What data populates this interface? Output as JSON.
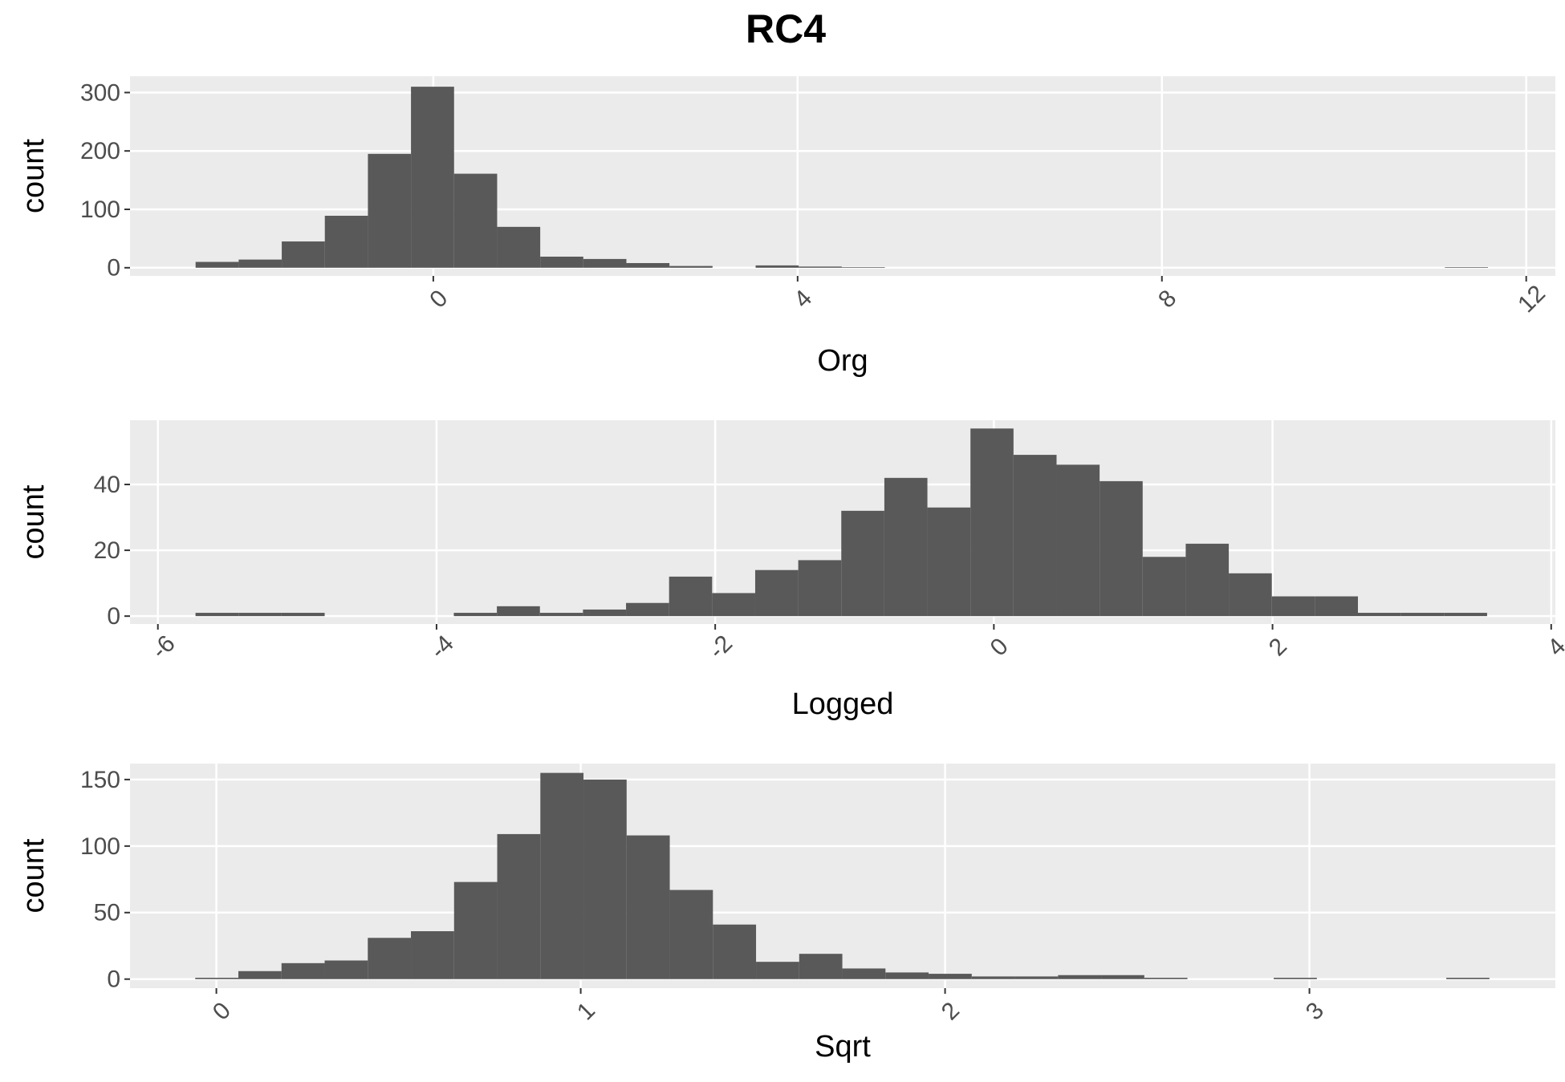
{
  "chart_data": [
    {
      "type": "histogram",
      "title": "RC4",
      "x_label": "Org",
      "y_label": "count",
      "color": "#595959",
      "grid": true,
      "bins": [
        -2.61,
        -2.137,
        -1.664,
        -1.191,
        -0.718,
        -0.245,
        0.228,
        0.701,
        1.174,
        1.647,
        2.12,
        2.593,
        3.066,
        3.539,
        4.012,
        4.485,
        4.958,
        5.431,
        5.904,
        6.377,
        6.85,
        7.323,
        7.796,
        8.269,
        8.742,
        9.215,
        9.688,
        10.161,
        10.634,
        11.107,
        11.58
      ],
      "values": [
        10,
        14,
        45,
        89,
        195,
        310,
        161,
        70,
        19,
        15,
        8,
        3,
        0,
        4,
        2,
        1,
        0,
        0,
        0,
        0,
        0,
        0,
        0,
        0,
        0,
        0,
        0,
        0,
        0,
        1
      ],
      "xlim": [
        -3.33,
        12.32
      ],
      "xticks": [
        0,
        4,
        8,
        12
      ],
      "ylim": [
        -14,
        328
      ],
      "yticks": [
        0,
        100,
        200,
        300
      ]
    },
    {
      "type": "histogram",
      "x_label": "Logged",
      "y_label": "count",
      "color": "#595959",
      "grid": true,
      "bins": [
        -5.73,
        -5.421,
        -5.112,
        -4.803,
        -4.494,
        -4.185,
        -3.876,
        -3.567,
        -3.258,
        -2.949,
        -2.64,
        -2.331,
        -2.022,
        -1.713,
        -1.404,
        -1.095,
        -0.786,
        -0.477,
        -0.168,
        0.141,
        0.45,
        0.759,
        1.068,
        1.377,
        1.686,
        1.995,
        2.304,
        2.613,
        2.922,
        3.231,
        3.54
      ],
      "values": [
        1,
        1,
        1,
        0,
        0,
        0,
        1,
        3,
        1,
        2,
        4,
        12,
        7,
        14,
        17,
        32,
        42,
        33,
        57,
        49,
        46,
        41,
        18,
        22,
        13,
        6,
        6,
        1,
        1,
        1
      ],
      "xlim": [
        -6.2,
        4.03
      ],
      "xticks": [
        -6,
        -4,
        -2,
        0,
        2,
        4
      ],
      "ylim": [
        -2.4,
        59.5
      ],
      "yticks": [
        0,
        20,
        40
      ]
    },
    {
      "type": "histogram",
      "x_label": "Sqrt",
      "y_label": "count",
      "color": "#595959",
      "grid": true,
      "bins": [
        -0.058,
        0.0604,
        0.1788,
        0.2972,
        0.4156,
        0.534,
        0.6524,
        0.7708,
        0.8892,
        1.0076,
        1.126,
        1.2444,
        1.3628,
        1.4812,
        1.5996,
        1.718,
        1.8364,
        1.9548,
        2.0732,
        2.1916,
        2.31,
        2.4284,
        2.5468,
        2.6652,
        2.7836,
        2.902,
        3.0204,
        3.1388,
        3.2572,
        3.3756,
        3.494
      ],
      "values": [
        1,
        6,
        12,
        14,
        31,
        36,
        73,
        109,
        155,
        150,
        108,
        67,
        41,
        13,
        19,
        8,
        5,
        4,
        2,
        2,
        3,
        3,
        1,
        0,
        0,
        1,
        0,
        0,
        0,
        1
      ],
      "xlim": [
        -0.237,
        3.675
      ],
      "xticks": [
        0,
        1,
        2,
        3
      ],
      "ylim": [
        -6.8,
        162
      ],
      "yticks": [
        0,
        50,
        100,
        150
      ]
    }
  ]
}
